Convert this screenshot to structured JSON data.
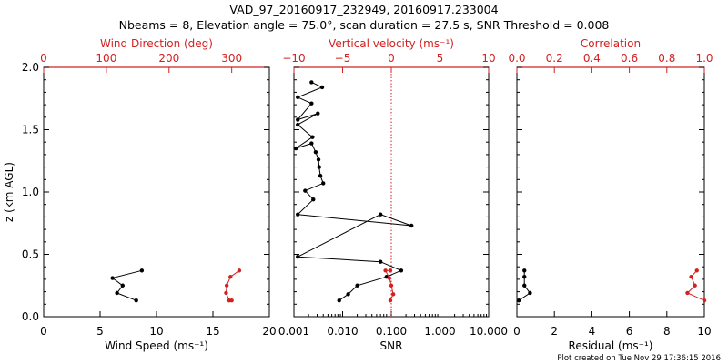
{
  "title_line1": "VAD_97_20160917_232949, 20160917.233004",
  "title_line2": "Nbeams = 8, Elevation angle = 75.0°, scan duration = 27.5 s, SNR Threshold = 0.008",
  "footer": "Plot created on Tue Nov 29 17:36:15 2016",
  "colors": {
    "axis": "#000000",
    "accent": "#d42020"
  },
  "chart_data": [
    {
      "type": "line",
      "panel": "wind",
      "ylabel": "z (km AGL)",
      "ylim": [
        0.0,
        2.0
      ],
      "yticks": [
        "0.0",
        "0.5",
        "1.0",
        "1.5",
        "2.0"
      ],
      "xlabel_bottom": "Wind Speed (ms⁻¹)",
      "xlim_bottom": [
        0,
        20
      ],
      "xticks_bottom": [
        "0",
        "5",
        "10",
        "15",
        "20"
      ],
      "xlabel_top": "Wind Direction (deg)",
      "xlim_top": [
        0,
        360
      ],
      "xticks_top": [
        "0",
        "100",
        "200",
        "300"
      ],
      "series": [
        {
          "axis": "bottom",
          "color": "#000000",
          "x": [
            8.7,
            6.1,
            7.0,
            6.5,
            8.2
          ],
          "y": [
            0.37,
            0.31,
            0.25,
            0.19,
            0.13
          ]
        },
        {
          "axis": "top",
          "color": "#d42020",
          "x": [
            312,
            298,
            292,
            291,
            296,
            300
          ],
          "y": [
            0.37,
            0.32,
            0.25,
            0.19,
            0.13,
            0.13
          ]
        }
      ]
    },
    {
      "type": "line",
      "panel": "snr",
      "xlabel_bottom": "SNR",
      "xscale_bottom": "log",
      "xlim_bottom": [
        0.001,
        10
      ],
      "xticks_bottom": [
        "0.001",
        "0.010",
        "0.100",
        "1.000",
        "10.000"
      ],
      "xlabel_top": "Vertical velocity (ms⁻¹)",
      "xlim_top": [
        -10,
        10
      ],
      "xticks_top": [
        "−10",
        "−5",
        "0",
        "5",
        "10"
      ],
      "zero_line_top": 0,
      "series": [
        {
          "axis": "bottom",
          "color": "#000000",
          "x": [
            0.0085,
            0.013,
            0.02,
            0.08,
            0.16,
            0.06,
            0.0012,
            0.06,
            0.26,
            0.0012,
            0.0025,
            0.0017,
            0.004,
            0.0035,
            0.0033,
            0.0032,
            0.0028,
            0.0023,
            0.0011,
            0.0024,
            0.0012,
            0.0031,
            0.0012,
            0.0023,
            0.0012,
            0.0038,
            0.0023
          ],
          "y": [
            0.13,
            0.18,
            0.25,
            0.32,
            0.37,
            0.44,
            0.48,
            0.82,
            0.73,
            0.82,
            0.94,
            1.01,
            1.07,
            1.13,
            1.2,
            1.26,
            1.32,
            1.39,
            1.35,
            1.44,
            1.54,
            1.63,
            1.58,
            1.71,
            1.76,
            1.84,
            1.88
          ]
        },
        {
          "axis": "top",
          "color": "#d42020",
          "x": [
            -0.1,
            0.2,
            0.0,
            -0.2,
            -0.6,
            -0.1
          ],
          "y": [
            0.13,
            0.18,
            0.25,
            0.31,
            0.37,
            0.37
          ]
        }
      ]
    },
    {
      "type": "line",
      "panel": "residual",
      "xlabel_bottom": "Residual (ms⁻¹)",
      "xlim_bottom": [
        0,
        10
      ],
      "xticks_bottom": [
        "0",
        "2",
        "4",
        "6",
        "8",
        "10"
      ],
      "xlabel_top": "Correlation",
      "xlim_top": [
        0.0,
        1.0
      ],
      "xticks_top": [
        "0.0",
        "0.2",
        "0.4",
        "0.6",
        "0.8",
        "1.0"
      ],
      "series": [
        {
          "axis": "bottom",
          "color": "#000000",
          "x": [
            0.4,
            0.4,
            0.4,
            0.7,
            0.1
          ],
          "y": [
            0.37,
            0.32,
            0.25,
            0.19,
            0.13
          ]
        },
        {
          "axis": "top",
          "color": "#d42020",
          "x": [
            0.96,
            0.93,
            0.95,
            0.91,
            1.0
          ],
          "y": [
            0.37,
            0.32,
            0.25,
            0.19,
            0.13
          ]
        }
      ]
    }
  ]
}
